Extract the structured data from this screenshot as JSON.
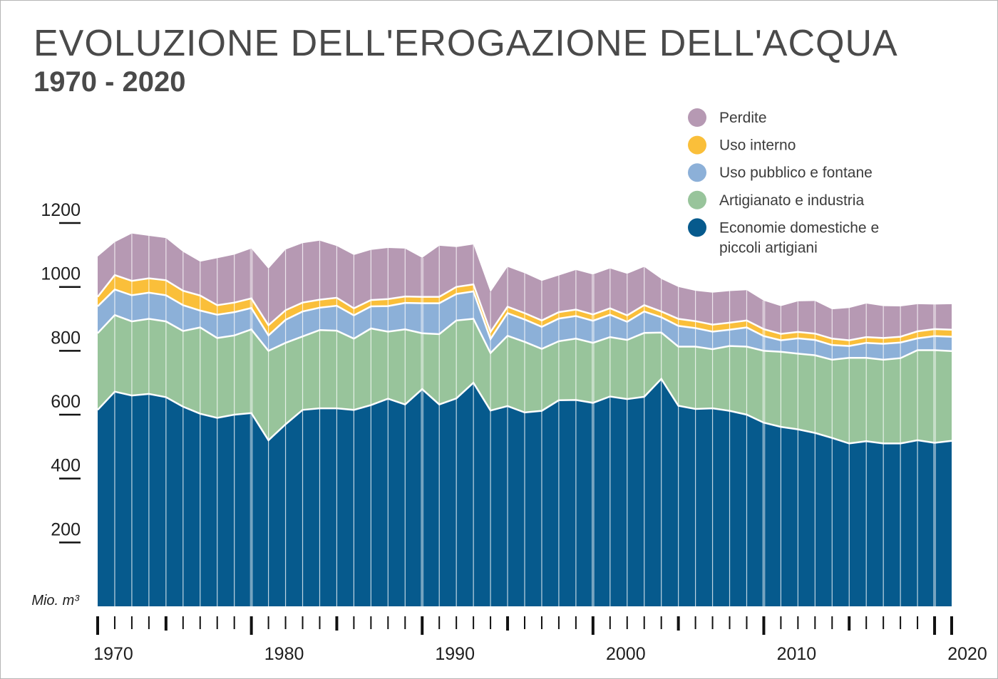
{
  "chart_data": {
    "type": "area",
    "stacked": true,
    "title": "EVOLUZIONE DELL'EROGAZIONE DELL'ACQUA",
    "subtitle": "1970 - 2020",
    "ylabel": "Mio. m³",
    "ylim": [
      0,
      1200
    ],
    "yticks": [
      200,
      400,
      600,
      800,
      1000,
      1200
    ],
    "xlim": [
      1970,
      2020
    ],
    "xticks": [
      1970,
      1980,
      1990,
      2000,
      2010,
      2020
    ],
    "grid": false,
    "legend_position": "top-right",
    "x": [
      1970,
      1971,
      1972,
      1973,
      1974,
      1975,
      1976,
      1977,
      1978,
      1979,
      1980,
      1981,
      1982,
      1983,
      1984,
      1985,
      1986,
      1987,
      1988,
      1989,
      1990,
      1991,
      1992,
      1993,
      1994,
      1995,
      1996,
      1997,
      1998,
      1999,
      2000,
      2001,
      2002,
      2003,
      2004,
      2005,
      2006,
      2007,
      2008,
      2009,
      2010,
      2011,
      2012,
      2013,
      2014,
      2015,
      2016,
      2017,
      2018,
      2019,
      2020
    ],
    "series": [
      {
        "name": "Economie domestiche e piccoli artigiani",
        "color": "#065a8d",
        "values": [
          615,
          672,
          660,
          665,
          655,
          625,
          603,
          590,
          600,
          605,
          520,
          570,
          615,
          620,
          620,
          615,
          630,
          650,
          632,
          680,
          632,
          651,
          700,
          613,
          627,
          607,
          612,
          645,
          646,
          637,
          657,
          649,
          656,
          712,
          628,
          618,
          620,
          612,
          600,
          575,
          562,
          554,
          543,
          527,
          510,
          517,
          510,
          510,
          520,
          512,
          518
        ]
      },
      {
        "name": "Artigianato e industria",
        "color": "#98c49b",
        "values": [
          240,
          240,
          232,
          235,
          237,
          237,
          270,
          250,
          248,
          262,
          280,
          255,
          230,
          245,
          243,
          223,
          240,
          210,
          235,
          175,
          220,
          244,
          200,
          180,
          220,
          221,
          194,
          185,
          192,
          188,
          186,
          185,
          200,
          145,
          185,
          195,
          185,
          203,
          213,
          225,
          235,
          237,
          243,
          245,
          268,
          261,
          262,
          267,
          282,
          290,
          281
        ]
      },
      {
        "name": "Uso pubblico e fontane",
        "color": "#8cb0d8",
        "values": [
          84,
          80,
          82,
          82,
          82,
          81,
          53,
          73,
          73,
          67,
          48,
          72,
          78,
          70,
          78,
          73,
          69,
          80,
          83,
          94,
          97,
          83,
          86,
          44,
          71,
          70,
          69,
          71,
          71,
          69,
          70,
          57,
          67,
          48,
          65,
          58,
          55,
          51,
          60,
          46,
          36,
          48,
          48,
          46,
          37,
          47,
          50,
          49,
          37,
          44,
          45
        ]
      },
      {
        "name": "Uso interno",
        "color": "#fabf3a",
        "values": [
          30,
          45,
          45,
          45,
          47,
          45,
          47,
          30,
          30,
          30,
          32,
          30,
          28,
          25,
          25,
          22,
          20,
          22,
          20,
          20,
          20,
          22,
          22,
          22,
          20,
          20,
          20,
          20,
          20,
          20,
          20,
          20,
          20,
          18,
          22,
          22,
          22,
          22,
          22,
          22,
          20,
          20,
          20,
          20,
          18,
          18,
          18,
          18,
          22,
          22,
          22
        ]
      },
      {
        "name": "Perdite",
        "color": "#b699b3",
        "values": [
          126,
          103,
          148,
          133,
          132,
          122,
          106,
          147,
          150,
          156,
          177,
          190,
          186,
          185,
          162,
          167,
          157,
          160,
          150,
          122,
          160,
          125,
          125,
          125,
          125,
          125,
          124,
          115,
          124,
          125,
          125,
          130,
          120,
          102,
          100,
          95,
          100,
          99,
          95,
          89,
          87,
          96,
          102,
          92,
          101,
          105,
          100,
          95,
          85,
          77,
          80
        ]
      }
    ]
  }
}
